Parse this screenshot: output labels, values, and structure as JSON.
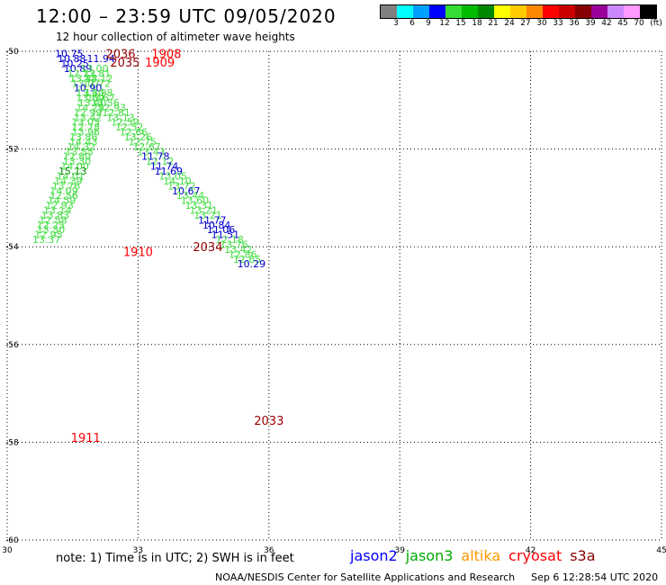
{
  "header": {
    "title": "12:00 – 23:59 UTC 09/05/2020",
    "subtitle": "12 hour collection of altimeter wave heights"
  },
  "color_scale": {
    "unit": "(ft)",
    "swatches": [
      {
        "color": "#808080",
        "label": "3"
      },
      {
        "color": "#00ffff",
        "label": "6"
      },
      {
        "color": "#00a0ff",
        "label": "9"
      },
      {
        "color": "#0000ff",
        "label": "12"
      },
      {
        "color": "#33dd33",
        "label": "15"
      },
      {
        "color": "#00bb00",
        "label": "18"
      },
      {
        "color": "#008800",
        "label": "21"
      },
      {
        "color": "#ffff00",
        "label": "24"
      },
      {
        "color": "#ffcc00",
        "label": "27"
      },
      {
        "color": "#ff8800",
        "label": "30"
      },
      {
        "color": "#ff0000",
        "label": "33"
      },
      {
        "color": "#cc0000",
        "label": "36"
      },
      {
        "color": "#880000",
        "label": "39"
      },
      {
        "color": "#990099",
        "label": "42"
      },
      {
        "color": "#cc88ff",
        "label": "45"
      },
      {
        "color": "#ff99ff",
        "label": "70"
      },
      {
        "color": "#000000",
        "label": ""
      }
    ]
  },
  "map": {
    "lon_ticks": [
      {
        "value": 30,
        "label": "30"
      },
      {
        "value": 33,
        "label": "33"
      },
      {
        "value": 36,
        "label": "36"
      },
      {
        "value": 39,
        "label": "39"
      },
      {
        "value": 42,
        "label": "42"
      },
      {
        "value": 45,
        "label": "45"
      }
    ],
    "lat_ticks": [
      {
        "value": -50,
        "label": "-50"
      },
      {
        "value": -52,
        "label": "-52"
      },
      {
        "value": -54,
        "label": "-54"
      },
      {
        "value": -56,
        "label": "-56"
      },
      {
        "value": -58,
        "label": "-58"
      },
      {
        "value": -60,
        "label": "-60"
      }
    ],
    "lon_range": [
      30,
      45
    ],
    "lat_range": [
      -50,
      -60
    ],
    "colors": {
      "light_green": "#44dd44",
      "blue": "#0000cc",
      "dark_green": "#008800",
      "red": "#ff0000",
      "dark_red": "#990000"
    },
    "time_labels": [
      {
        "lat": -50.05,
        "lon": 32.6,
        "text": "2036",
        "color": "dark_red"
      },
      {
        "lat": -50.05,
        "lon": 33.65,
        "text": "1908",
        "color": "red"
      },
      {
        "lat": -50.22,
        "lon": 32.7,
        "text": "2035",
        "color": "dark_red"
      },
      {
        "lat": -50.22,
        "lon": 33.5,
        "text": "1909",
        "color": "red"
      },
      {
        "lat": -54.1,
        "lon": 33.0,
        "text": "1910",
        "color": "red"
      },
      {
        "lat": -57.9,
        "lon": 31.8,
        "text": "1911",
        "color": "red"
      },
      {
        "lat": -54.0,
        "lon": 34.6,
        "text": "2034",
        "color": "dark_red"
      },
      {
        "lat": -57.55,
        "lon": 36.0,
        "text": "2033",
        "color": "dark_red"
      }
    ],
    "values": [
      {
        "lat": -50.05,
        "lon": 31.42,
        "text": "10.75",
        "color": "blue"
      },
      {
        "lat": -50.15,
        "lon": 31.48,
        "text": "10.88",
        "color": "blue"
      },
      {
        "lat": -50.15,
        "lon": 32.15,
        "text": "11.94",
        "color": "blue"
      },
      {
        "lat": -50.25,
        "lon": 31.55,
        "text": "10.25",
        "color": "blue"
      },
      {
        "lat": -50.35,
        "lon": 31.62,
        "text": "10.89",
        "color": "blue"
      },
      {
        "lat": -50.35,
        "lon": 32.0,
        "text": "13.00",
        "color": "light_green"
      },
      {
        "lat": -50.45,
        "lon": 31.7,
        "text": "12.22",
        "color": "light_green"
      },
      {
        "lat": -50.45,
        "lon": 32.05,
        "text": "13.81",
        "color": "light_green"
      },
      {
        "lat": -50.55,
        "lon": 31.75,
        "text": "13.44",
        "color": "light_green"
      },
      {
        "lat": -50.55,
        "lon": 32.1,
        "text": "13.12",
        "color": "light_green"
      },
      {
        "lat": -50.65,
        "lon": 31.8,
        "text": "13.07",
        "color": "light_green"
      },
      {
        "lat": -50.65,
        "lon": 32.05,
        "text": "12.72",
        "color": "light_green"
      },
      {
        "lat": -50.75,
        "lon": 31.85,
        "text": "10.90",
        "color": "blue"
      },
      {
        "lat": -50.85,
        "lon": 31.9,
        "text": "13.80",
        "color": "light_green"
      },
      {
        "lat": -50.85,
        "lon": 32.1,
        "text": "13.98",
        "color": "light_green"
      },
      {
        "lat": -50.95,
        "lon": 31.9,
        "text": "13.69",
        "color": "light_green"
      },
      {
        "lat": -50.95,
        "lon": 32.15,
        "text": "13.67",
        "color": "light_green"
      },
      {
        "lat": -51.05,
        "lon": 31.95,
        "text": "13.40",
        "color": "light_green"
      },
      {
        "lat": -51.05,
        "lon": 32.25,
        "text": "13.56",
        "color": "light_green"
      },
      {
        "lat": -51.15,
        "lon": 31.9,
        "text": "14.29",
        "color": "light_green"
      },
      {
        "lat": -51.15,
        "lon": 32.4,
        "text": "12.93",
        "color": "light_green"
      },
      {
        "lat": -51.25,
        "lon": 31.85,
        "text": "12.99",
        "color": "light_green"
      },
      {
        "lat": -51.25,
        "lon": 32.5,
        "text": "12.81",
        "color": "light_green"
      },
      {
        "lat": -51.35,
        "lon": 31.85,
        "text": "13.42",
        "color": "light_green"
      },
      {
        "lat": -51.35,
        "lon": 32.6,
        "text": "13.13",
        "color": "light_green"
      },
      {
        "lat": -51.45,
        "lon": 31.8,
        "text": "13.05",
        "color": "light_green"
      },
      {
        "lat": -51.45,
        "lon": 32.7,
        "text": "12.59",
        "color": "light_green"
      },
      {
        "lat": -51.55,
        "lon": 31.8,
        "text": "12.78",
        "color": "light_green"
      },
      {
        "lat": -51.55,
        "lon": 32.8,
        "text": "12.52",
        "color": "light_green"
      },
      {
        "lat": -51.65,
        "lon": 31.8,
        "text": "13.96",
        "color": "light_green"
      },
      {
        "lat": -51.65,
        "lon": 32.9,
        "text": "12.66",
        "color": "light_green"
      },
      {
        "lat": -51.75,
        "lon": 31.75,
        "text": "13.86",
        "color": "light_green"
      },
      {
        "lat": -51.75,
        "lon": 33.0,
        "text": "13.26",
        "color": "light_green"
      },
      {
        "lat": -51.85,
        "lon": 31.75,
        "text": "14.43",
        "color": "light_green"
      },
      {
        "lat": -51.85,
        "lon": 33.1,
        "text": "12.75",
        "color": "light_green"
      },
      {
        "lat": -51.95,
        "lon": 31.7,
        "text": "14.32",
        "color": "light_green"
      },
      {
        "lat": -51.95,
        "lon": 33.2,
        "text": "12.67",
        "color": "light_green"
      },
      {
        "lat": -52.05,
        "lon": 31.65,
        "text": "13.55",
        "color": "light_green"
      },
      {
        "lat": -52.05,
        "lon": 33.3,
        "text": "13.43",
        "color": "light_green"
      },
      {
        "lat": -52.15,
        "lon": 31.6,
        "text": "12.80",
        "color": "light_green"
      },
      {
        "lat": -52.15,
        "lon": 33.4,
        "text": "11.78",
        "color": "blue"
      },
      {
        "lat": -52.25,
        "lon": 31.6,
        "text": "13.30",
        "color": "light_green"
      },
      {
        "lat": -52.25,
        "lon": 33.5,
        "text": "12.12",
        "color": "light_green"
      },
      {
        "lat": -52.35,
        "lon": 31.55,
        "text": "14.00",
        "color": "light_green"
      },
      {
        "lat": -52.35,
        "lon": 33.6,
        "text": "11.74",
        "color": "blue"
      },
      {
        "lat": -52.45,
        "lon": 31.5,
        "text": "15.13",
        "color": "dark_green"
      },
      {
        "lat": -52.45,
        "lon": 33.7,
        "text": "11.69",
        "color": "blue"
      },
      {
        "lat": -52.55,
        "lon": 31.45,
        "text": "14.01",
        "color": "light_green"
      },
      {
        "lat": -52.55,
        "lon": 33.8,
        "text": "13.05",
        "color": "light_green"
      },
      {
        "lat": -52.65,
        "lon": 31.4,
        "text": "14.39",
        "color": "light_green"
      },
      {
        "lat": -52.65,
        "lon": 33.9,
        "text": "14.10",
        "color": "light_green"
      },
      {
        "lat": -52.75,
        "lon": 31.35,
        "text": "13.76",
        "color": "light_green"
      },
      {
        "lat": -52.75,
        "lon": 34.0,
        "text": "13.72",
        "color": "light_green"
      },
      {
        "lat": -52.85,
        "lon": 31.3,
        "text": "14.09",
        "color": "light_green"
      },
      {
        "lat": -52.85,
        "lon": 34.1,
        "text": "10.67",
        "color": "blue"
      },
      {
        "lat": -52.95,
        "lon": 31.3,
        "text": "12.56",
        "color": "light_green"
      },
      {
        "lat": -52.95,
        "lon": 34.2,
        "text": "13.44",
        "color": "light_green"
      },
      {
        "lat": -53.05,
        "lon": 31.25,
        "text": "14.59",
        "color": "light_green"
      },
      {
        "lat": -53.05,
        "lon": 34.3,
        "text": "13.60",
        "color": "light_green"
      },
      {
        "lat": -53.15,
        "lon": 31.2,
        "text": "12.93",
        "color": "light_green"
      },
      {
        "lat": -53.15,
        "lon": 34.4,
        "text": "13.31",
        "color": "light_green"
      },
      {
        "lat": -53.25,
        "lon": 31.15,
        "text": "13.14",
        "color": "light_green"
      },
      {
        "lat": -53.25,
        "lon": 34.5,
        "text": "13.21",
        "color": "light_green"
      },
      {
        "lat": -53.35,
        "lon": 31.1,
        "text": "13.83",
        "color": "light_green"
      },
      {
        "lat": -53.35,
        "lon": 34.6,
        "text": "13.21",
        "color": "light_green"
      },
      {
        "lat": -53.45,
        "lon": 31.05,
        "text": "12.58",
        "color": "light_green"
      },
      {
        "lat": -53.45,
        "lon": 34.7,
        "text": "11.77",
        "color": "blue"
      },
      {
        "lat": -53.55,
        "lon": 31.0,
        "text": "12.25",
        "color": "light_green"
      },
      {
        "lat": -53.55,
        "lon": 34.8,
        "text": "10.84",
        "color": "blue"
      },
      {
        "lat": -53.65,
        "lon": 31.0,
        "text": "13.30",
        "color": "light_green"
      },
      {
        "lat": -53.65,
        "lon": 34.9,
        "text": "11.06",
        "color": "blue"
      },
      {
        "lat": -53.75,
        "lon": 30.95,
        "text": "12.95",
        "color": "light_green"
      },
      {
        "lat": -53.75,
        "lon": 35.0,
        "text": "11.51",
        "color": "blue"
      },
      {
        "lat": -53.85,
        "lon": 30.9,
        "text": "13.37",
        "color": "light_green"
      },
      {
        "lat": -53.85,
        "lon": 35.1,
        "text": "12.18",
        "color": "light_green"
      },
      {
        "lat": -53.95,
        "lon": 35.2,
        "text": "13.76",
        "color": "light_green"
      },
      {
        "lat": -54.05,
        "lon": 35.3,
        "text": "13.42",
        "color": "light_green"
      },
      {
        "lat": -54.15,
        "lon": 35.4,
        "text": "12.86",
        "color": "light_green"
      },
      {
        "lat": -54.25,
        "lon": 35.5,
        "text": "12.65",
        "color": "light_green"
      },
      {
        "lat": -54.35,
        "lon": 35.6,
        "text": "10.29",
        "color": "blue"
      }
    ]
  },
  "note": "note: 1) Time is in UTC; 2) SWH is in feet",
  "satellites": [
    {
      "name": "jason2",
      "color": "#0000ff"
    },
    {
      "name": "jason3",
      "color": "#00aa00"
    },
    {
      "name": "altika",
      "color": "#ff9900"
    },
    {
      "name": "cryosat",
      "color": "#ff0000"
    },
    {
      "name": "s3a",
      "color": "#880000"
    }
  ],
  "footer": {
    "org": "NOAA/NESDIS Center for Satellite Applications and Research",
    "timestamp": "Sep  6 12:28:54 UTC 2020"
  }
}
